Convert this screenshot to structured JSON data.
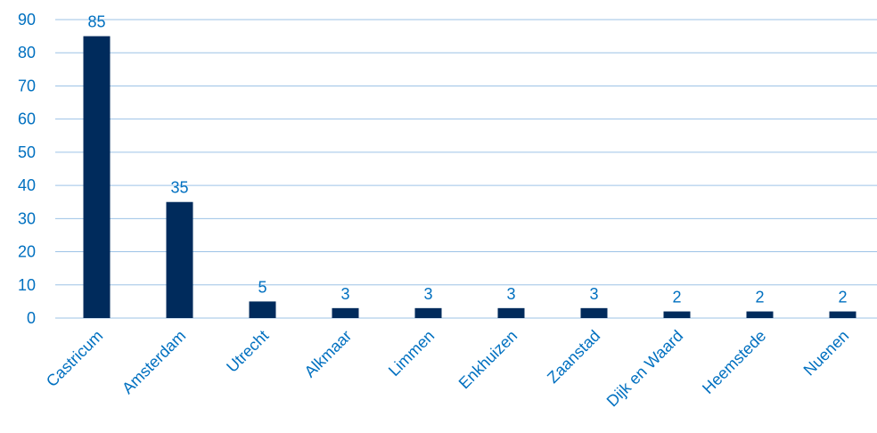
{
  "chart_data": {
    "type": "bar",
    "title": "",
    "xlabel": "",
    "ylabel": "",
    "categories": [
      "Castricum",
      "Amsterdam",
      "Utrecht",
      "Alkmaar",
      "Limmen",
      "Enkhuizen",
      "Zaanstad",
      "Dijk en Waard",
      "Heemstede",
      "Nuenen"
    ],
    "values": [
      85,
      35,
      5,
      3,
      3,
      3,
      3,
      2,
      2,
      2
    ],
    "ylim": [
      0,
      90
    ],
    "yticks": [
      0,
      10,
      20,
      30,
      40,
      50,
      60,
      70,
      80,
      90
    ],
    "grid": true,
    "legend": "none",
    "data_labels": true,
    "colors": {
      "bar": "#002B5C",
      "text": "#0070C0",
      "grid": "#9DC3E6"
    }
  }
}
